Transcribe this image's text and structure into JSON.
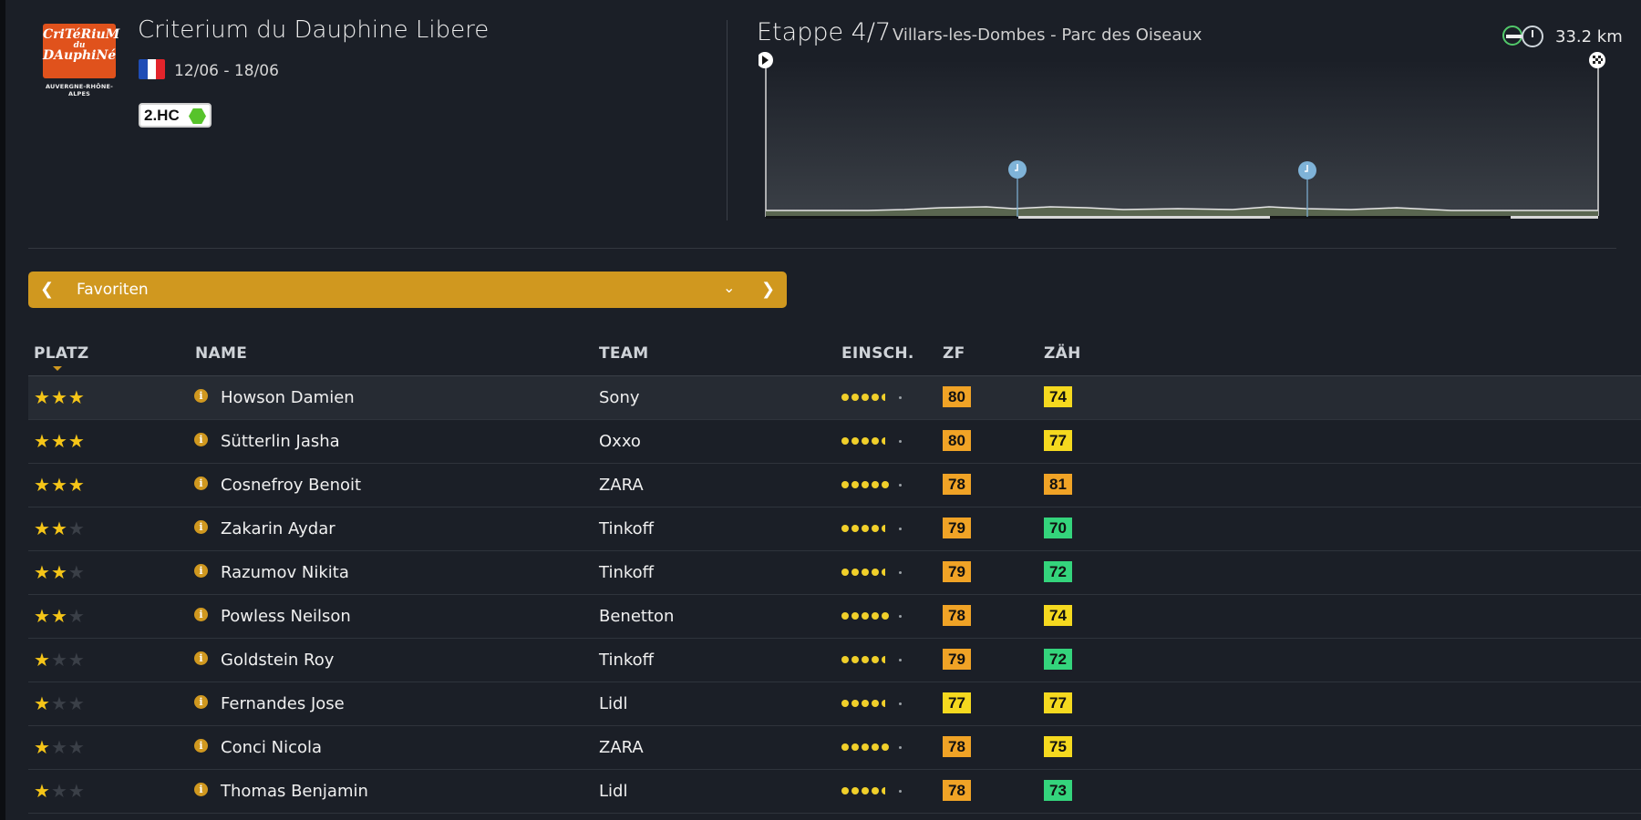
{
  "race": {
    "logo_line1": "CriTéRiuM",
    "logo_line2": "du",
    "logo_line3": "DAuphiNé",
    "logo_region": "AUVERGNE-RHÔNE-ALPES",
    "name": "Criterium du Dauphine Libere",
    "dates": "12/06 - 18/06",
    "category": "2.HC",
    "flag_colors": [
      "#1f4db6",
      "#ffffff",
      "#e3242b"
    ]
  },
  "stage": {
    "label": "Etappe 4/7",
    "route": "Villars-les-Dombes - Parc des Oiseaux",
    "type_icons": [
      "flat-stage-icon",
      "time-trial-icon"
    ],
    "distance": "33.2 km"
  },
  "filter": {
    "label": "Favoriten",
    "prev_icon": "chevron-left-icon",
    "next_icon": "chevron-right-icon",
    "dropdown_icon": "chevron-down-icon"
  },
  "table": {
    "headers": {
      "platz": "PLATZ",
      "name": "NAME",
      "team": "TEAM",
      "einsch": "EINSCH.",
      "zf": "ZF",
      "zah": "ZÄH"
    },
    "colors": {
      "orange": "#f0a326",
      "yellow": "#f5d91f",
      "green": "#34d47c"
    },
    "rows": [
      {
        "stars": 3,
        "name": "Howson Damien",
        "team": "Sony",
        "form": 4.5,
        "zf": "80",
        "zf_color": "orange",
        "zah": "74",
        "zah_color": "yellow"
      },
      {
        "stars": 3,
        "name": "Sütterlin Jasha",
        "team": "Oxxo",
        "form": 4.5,
        "zf": "80",
        "zf_color": "orange",
        "zah": "77",
        "zah_color": "yellow"
      },
      {
        "stars": 3,
        "name": "Cosnefroy Benoit",
        "team": "ZARA",
        "form": 5,
        "zf": "78",
        "zf_color": "orange",
        "zah": "81",
        "zah_color": "orange"
      },
      {
        "stars": 2,
        "name": "Zakarin Aydar",
        "team": "Tinkoff",
        "form": 4.5,
        "zf": "79",
        "zf_color": "orange",
        "zah": "70",
        "zah_color": "green"
      },
      {
        "stars": 2,
        "name": "Razumov Nikita",
        "team": "Tinkoff",
        "form": 4.5,
        "zf": "79",
        "zf_color": "orange",
        "zah": "72",
        "zah_color": "green"
      },
      {
        "stars": 2,
        "name": "Powless Neilson",
        "team": "Benetton",
        "form": 5,
        "zf": "78",
        "zf_color": "orange",
        "zah": "74",
        "zah_color": "yellow"
      },
      {
        "stars": 1,
        "name": "Goldstein Roy",
        "team": "Tinkoff",
        "form": 4.5,
        "zf": "79",
        "zf_color": "orange",
        "zah": "72",
        "zah_color": "green"
      },
      {
        "stars": 1,
        "name": "Fernandes Jose",
        "team": "Lidl",
        "form": 4.5,
        "zf": "77",
        "zf_color": "yellow",
        "zah": "77",
        "zah_color": "yellow"
      },
      {
        "stars": 1,
        "name": "Conci Nicola",
        "team": "ZARA",
        "form": 5,
        "zf": "78",
        "zf_color": "orange",
        "zah": "75",
        "zah_color": "yellow"
      },
      {
        "stars": 1,
        "name": "Thomas Benjamin",
        "team": "Lidl",
        "form": 4.5,
        "zf": "78",
        "zf_color": "orange",
        "zah": "73",
        "zah_color": "green"
      }
    ]
  }
}
